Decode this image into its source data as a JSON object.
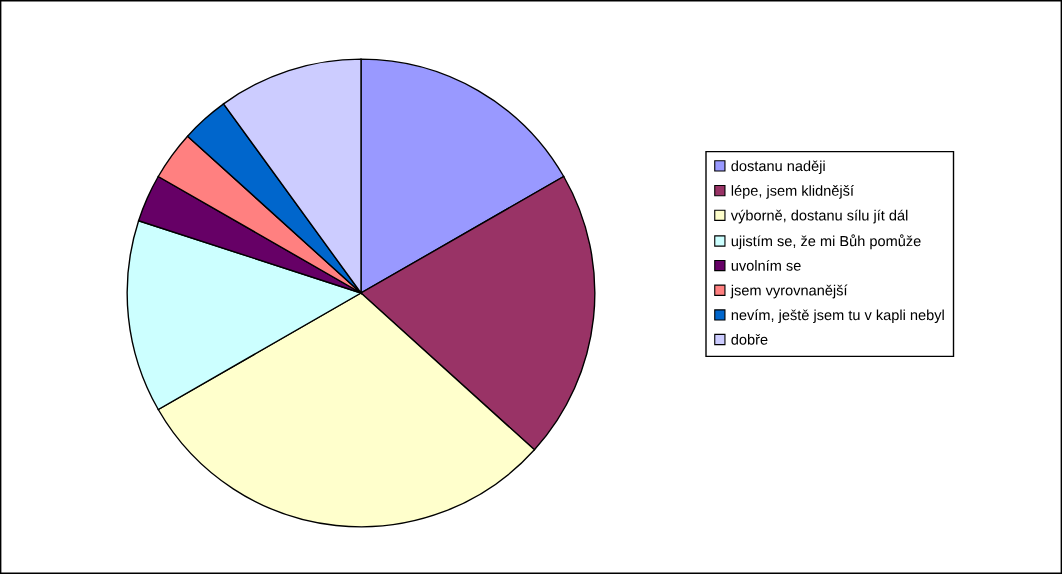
{
  "chart_data": {
    "type": "pie",
    "categories": [
      "dostanu naději",
      "lépe, jsem klidnější",
      "výborně, dostanu sílu jít dál",
      "ujistím se, že mi Bůh pomůže",
      "uvolním se",
      "jsem vyrovnanější",
      "nevím, ještě jsem tu v kapli nebyl",
      "dobře"
    ],
    "values": [
      16.7,
      20,
      30,
      13.3,
      3.3,
      3.4,
      3.3,
      10
    ],
    "colors": [
      "#9999ff",
      "#993366",
      "#ffffcc",
      "#ccffff",
      "#660066",
      "#ff8080",
      "#0066cc",
      "#ccccff"
    ],
    "legend": "right"
  }
}
